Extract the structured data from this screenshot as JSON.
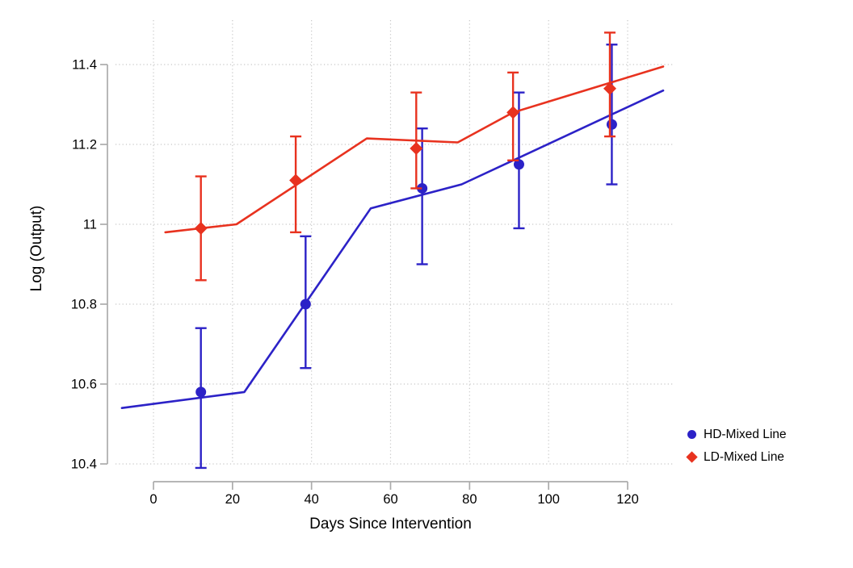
{
  "chart_data": {
    "type": "line",
    "title": "",
    "xlabel": "Days Since Intervention",
    "ylabel": "Log (Output)",
    "x_ticks": [
      0,
      20,
      40,
      60,
      80,
      100,
      120
    ],
    "x_tick_labels": [
      "0",
      "20",
      "40",
      "60",
      "80",
      "100",
      "120"
    ],
    "y_ticks": [
      10.4,
      10.6,
      10.8,
      11.0,
      11.2,
      11.4
    ],
    "y_tick_labels": [
      "10.4",
      "10.6",
      "10.8",
      "11",
      "11.2",
      "11.4"
    ],
    "xlim": [
      -10,
      130
    ],
    "ylim": [
      10.4,
      11.4
    ],
    "grid": "dotted-both-axes",
    "legend_position": "right-middle",
    "colors": {
      "axis": "#ababab",
      "gridline": "#c6c6c6",
      "text": "#000000",
      "hd_blue": "#2c22c7",
      "ld_red": "#e8321f"
    },
    "series": [
      {
        "name": "HD-Mixed Line",
        "color": "#2c22c7",
        "marker": "circle",
        "points": [
          {
            "x": 12,
            "y": 10.58,
            "lo": 10.39,
            "hi": 10.74
          },
          {
            "x": 38.5,
            "y": 10.8,
            "lo": 10.64,
            "hi": 10.97
          },
          {
            "x": 68,
            "y": 11.09,
            "lo": 10.9,
            "hi": 11.24
          },
          {
            "x": 92.5,
            "y": 11.15,
            "lo": 10.99,
            "hi": 11.33
          },
          {
            "x": 116,
            "y": 11.25,
            "lo": 11.1,
            "hi": 11.45
          }
        ],
        "trend_line": [
          [
            -8,
            10.54
          ],
          [
            23,
            10.58
          ],
          [
            55,
            11.04
          ],
          [
            78,
            11.1
          ],
          [
            129,
            11.335
          ]
        ]
      },
      {
        "name": "LD-Mixed Line",
        "color": "#e8321f",
        "marker": "diamond",
        "points": [
          {
            "x": 12,
            "y": 10.99,
            "lo": 10.86,
            "hi": 11.12
          },
          {
            "x": 36,
            "y": 11.11,
            "lo": 10.98,
            "hi": 11.22
          },
          {
            "x": 66.5,
            "y": 11.19,
            "lo": 11.09,
            "hi": 11.33
          },
          {
            "x": 91,
            "y": 11.28,
            "lo": 11.16,
            "hi": 11.38
          },
          {
            "x": 115.5,
            "y": 11.34,
            "lo": 11.22,
            "hi": 11.48
          }
        ],
        "trend_line": [
          [
            3,
            10.98
          ],
          [
            21,
            11.0
          ],
          [
            54,
            11.215
          ],
          [
            77,
            11.205
          ],
          [
            91,
            11.28
          ],
          [
            129,
            11.395
          ]
        ]
      }
    ]
  }
}
